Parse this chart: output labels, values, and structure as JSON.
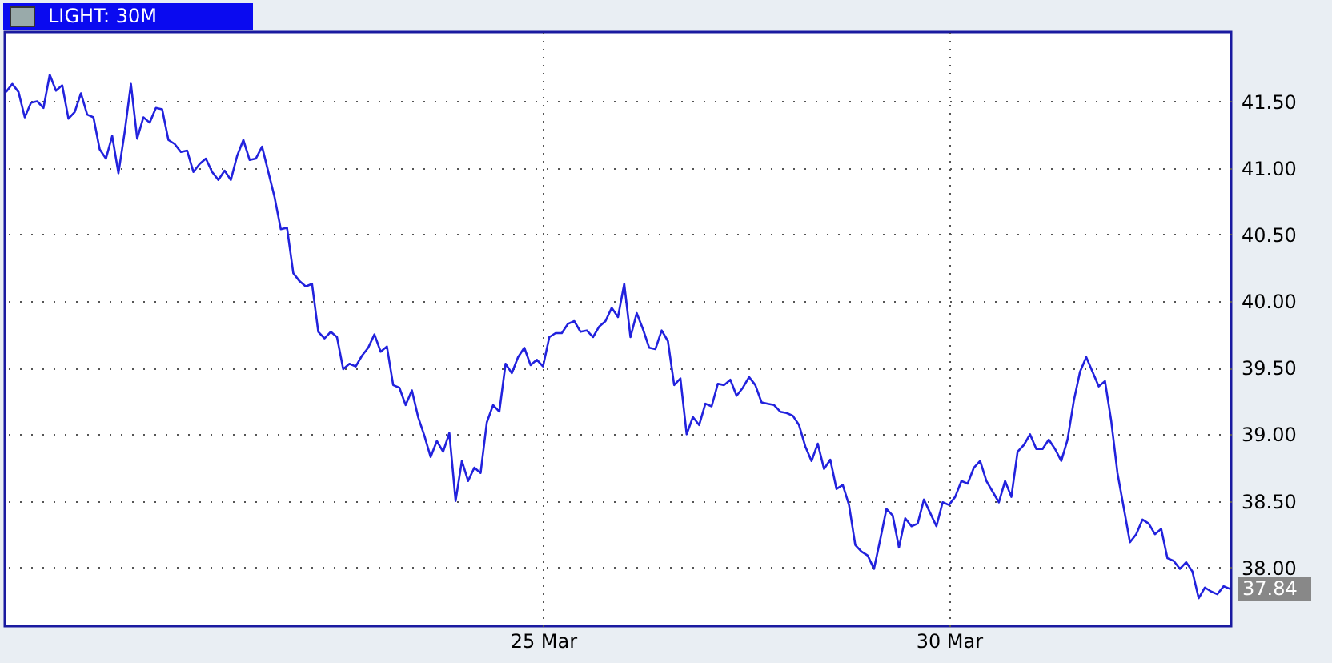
{
  "chart_data": {
    "type": "line",
    "title": "LIGHT: 30M",
    "categories": [
      null,
      null,
      null,
      null,
      null,
      null,
      null,
      null,
      null,
      null,
      null,
      null,
      null,
      null,
      null,
      null,
      null,
      null,
      null,
      null,
      null,
      null,
      null,
      null,
      null,
      null,
      null,
      null,
      null,
      null,
      null,
      null,
      null,
      null,
      null,
      null,
      null,
      null,
      null,
      null,
      null,
      null,
      null,
      null,
      null,
      null,
      null,
      null,
      null,
      null,
      null,
      null,
      null,
      null,
      null,
      null,
      null,
      null,
      null,
      null,
      null,
      null,
      null,
      null,
      null,
      null,
      null,
      null,
      null,
      null,
      null,
      null,
      null,
      null,
      null,
      null,
      null,
      null,
      null,
      null,
      null,
      null,
      null,
      null,
      null,
      null,
      "25 Mar",
      null,
      null,
      null,
      null,
      null,
      null,
      null,
      null,
      null,
      null,
      null,
      null,
      null,
      null,
      null,
      null,
      null,
      null,
      null,
      null,
      null,
      null,
      null,
      null,
      null,
      null,
      null,
      null,
      null,
      null,
      null,
      null,
      null,
      null,
      null,
      null,
      null,
      null,
      null,
      null,
      null,
      null,
      null,
      null,
      null,
      null,
      null,
      null,
      null,
      null,
      null,
      null,
      null,
      null,
      null,
      null,
      null,
      null,
      null,
      null,
      null,
      null,
      null,
      null,
      "30 Mar",
      null,
      null,
      null,
      null,
      null,
      null,
      null,
      null,
      null,
      null,
      null,
      null,
      null,
      null,
      null,
      null,
      null,
      null,
      null,
      null,
      null,
      null,
      null,
      null,
      null,
      null,
      null,
      null,
      null,
      null,
      null,
      null,
      null,
      null,
      null,
      null,
      null,
      null,
      null,
      null,
      null,
      null,
      null,
      null,
      null
    ],
    "ylim": [
      37.56,
      42.02
    ],
    "yticks": [
      {
        "value": 38,
        "label": "38.00"
      },
      {
        "value": 38.5,
        "label": "38.50"
      },
      {
        "value": 39,
        "label": "39.00"
      },
      {
        "value": 39.5,
        "label": "39.50"
      },
      {
        "value": 40,
        "label": "40.00"
      },
      {
        "value": 40.5,
        "label": "40.50"
      },
      {
        "value": 41,
        "label": "41.00"
      },
      {
        "value": 41.5,
        "label": "41.50"
      }
    ],
    "grid": true,
    "line_style": "solid",
    "annotations": [
      "37.84"
    ],
    "series": [
      {
        "color": "#2222dd",
        "values": [
          41.57,
          41.63,
          41.57,
          41.38,
          41.49,
          41.5,
          41.45,
          41.7,
          41.58,
          41.62,
          41.37,
          41.42,
          41.56,
          41.4,
          41.38,
          41.14,
          41.07,
          41.24,
          40.96,
          41.27,
          41.63,
          41.22,
          41.38,
          41.34,
          41.45,
          41.44,
          41.21,
          41.18,
          41.12,
          41.13,
          40.97,
          41.03,
          41.07,
          40.97,
          40.91,
          40.98,
          40.91,
          41.09,
          41.21,
          41.06,
          41.07,
          41.16,
          40.97,
          40.78,
          40.54,
          40.55,
          40.21,
          40.15,
          40.11,
          40.13,
          39.77,
          39.72,
          39.77,
          39.73,
          39.49,
          39.53,
          39.51,
          39.59,
          39.65,
          39.75,
          39.62,
          39.66,
          39.37,
          39.35,
          39.22,
          39.33,
          39.13,
          38.99,
          38.83,
          38.95,
          38.87,
          39.01,
          38.5,
          38.8,
          38.65,
          38.75,
          38.71,
          39.09,
          39.22,
          39.17,
          39.53,
          39.46,
          39.58,
          39.65,
          39.52,
          39.56,
          39.51,
          39.73,
          39.76,
          39.76,
          39.83,
          39.85,
          39.77,
          39.78,
          39.73,
          39.81,
          39.85,
          39.95,
          39.88,
          40.13,
          39.73,
          39.91,
          39.79,
          39.65,
          39.64,
          39.78,
          39.7,
          39.37,
          39.42,
          39.0,
          39.13,
          39.07,
          39.23,
          39.21,
          39.38,
          39.37,
          39.41,
          39.29,
          39.35,
          39.43,
          39.37,
          39.24,
          39.23,
          39.22,
          39.17,
          39.16,
          39.14,
          39.07,
          38.91,
          38.8,
          38.93,
          38.74,
          38.81,
          38.59,
          38.62,
          38.47,
          38.17,
          38.12,
          38.09,
          37.99,
          38.21,
          38.44,
          38.39,
          38.15,
          38.37,
          38.31,
          38.33,
          38.51,
          38.41,
          38.31,
          38.49,
          38.47,
          38.53,
          38.65,
          38.63,
          38.75,
          38.8,
          38.65,
          38.57,
          38.49,
          38.65,
          38.53,
          38.87,
          38.92,
          39.0,
          38.89,
          38.89,
          38.96,
          38.89,
          38.8,
          38.96,
          39.25,
          39.47,
          39.58,
          39.47,
          39.36,
          39.4,
          39.1,
          38.71,
          38.45,
          38.19,
          38.25,
          38.36,
          38.33,
          38.25,
          38.29,
          38.07,
          38.05,
          37.99,
          38.04,
          37.97,
          37.77,
          37.85,
          37.82,
          37.8,
          37.86,
          37.84
        ]
      }
    ]
  }
}
